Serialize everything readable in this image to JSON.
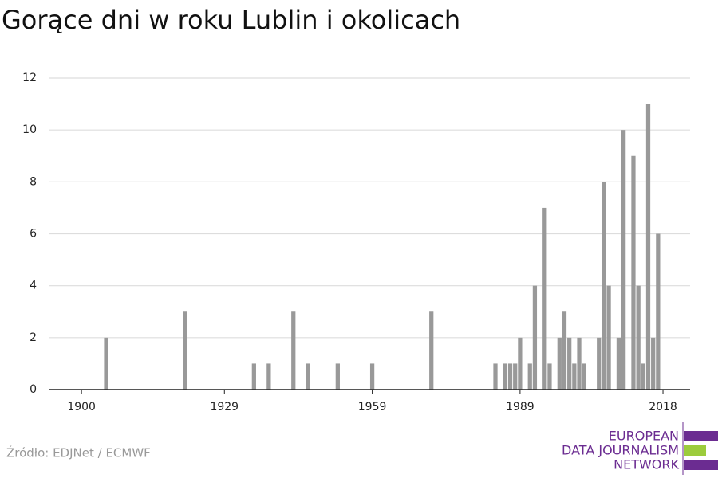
{
  "chart_data": {
    "type": "bar",
    "title": "Gorące dni w roku Lublin i okolicach",
    "x": [
      1905,
      1921,
      1935,
      1938,
      1943,
      1946,
      1952,
      1959,
      1971,
      1984,
      1986,
      1987,
      1988,
      1989,
      1991,
      1992,
      1994,
      1995,
      1997,
      1998,
      1999,
      2000,
      2001,
      2002,
      2005,
      2006,
      2007,
      2009,
      2010,
      2012,
      2013,
      2014,
      2015,
      2016,
      2017
    ],
    "values": [
      2,
      3,
      1,
      1,
      3,
      1,
      1,
      1,
      3,
      1,
      1,
      1,
      1,
      2,
      1,
      4,
      7,
      1,
      2,
      3,
      2,
      1,
      2,
      1,
      2,
      8,
      4,
      2,
      10,
      9,
      4,
      1,
      11,
      2,
      6
    ],
    "color": "#999999",
    "xlim": [
      1893.5,
      2023.5
    ],
    "xticks": [
      1900,
      1929,
      1959,
      1989,
      2018
    ],
    "ylim": [
      0,
      12
    ],
    "yticks": [
      0,
      2,
      4,
      6,
      8,
      10,
      12
    ],
    "grid": true,
    "source": "Źródło: EDJNet / ECMWF",
    "logo": [
      "EUROPEAN",
      "DATA JOURNALISM",
      "NETWORK"
    ]
  }
}
